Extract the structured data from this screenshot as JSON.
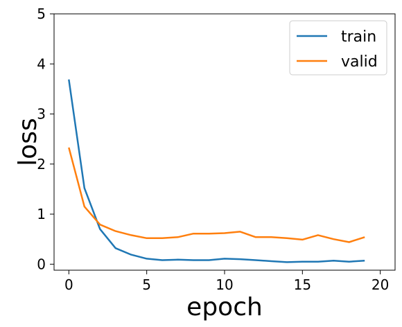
{
  "chart_data": {
    "type": "line",
    "title": "",
    "xlabel": "epoch",
    "ylabel": "loss",
    "xlim": [
      -0.95,
      20.95
    ],
    "ylim": [
      -0.12,
      5.0
    ],
    "xticks": [
      0,
      5,
      10,
      15,
      20
    ],
    "yticks": [
      0,
      1,
      2,
      3,
      4,
      5
    ],
    "grid": false,
    "legend_position": "top-right",
    "x": [
      0,
      1,
      2,
      3,
      4,
      5,
      6,
      7,
      8,
      9,
      10,
      11,
      12,
      13,
      14,
      15,
      16,
      17,
      18,
      19
    ],
    "series": [
      {
        "name": "train",
        "color": "#1f77b4",
        "values": [
          3.69,
          1.52,
          0.7,
          0.32,
          0.19,
          0.11,
          0.08,
          0.09,
          0.08,
          0.08,
          0.11,
          0.1,
          0.08,
          0.06,
          0.04,
          0.05,
          0.05,
          0.07,
          0.05,
          0.07
        ]
      },
      {
        "name": "valid",
        "color": "#ff7f0e",
        "values": [
          2.33,
          1.15,
          0.79,
          0.66,
          0.58,
          0.52,
          0.52,
          0.54,
          0.61,
          0.61,
          0.62,
          0.65,
          0.54,
          0.54,
          0.52,
          0.49,
          0.58,
          0.5,
          0.44,
          0.54
        ]
      }
    ]
  }
}
